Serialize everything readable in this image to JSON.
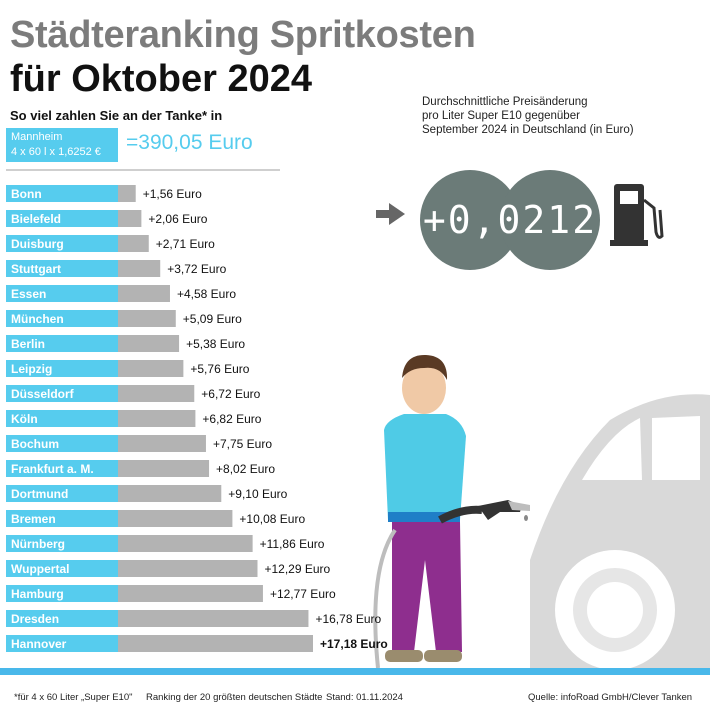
{
  "header": {
    "title_line1": "Städteranking Spritkosten",
    "title_line2": "für Oktober 2024",
    "subtitle": "So viel zahlen Sie an der Tanke* in"
  },
  "reference": {
    "city": "Mannheim",
    "formula": "4 x 60 l x 1,6252 €",
    "total": "=390,05 Euro"
  },
  "price_change": {
    "note_lines": [
      "Durchschnittliche Preisänderung",
      "pro Liter Super E10 gegenüber",
      "September 2024 in Deutschland (in Euro)"
    ],
    "value": "+0,0212"
  },
  "colors": {
    "accent": "#56ccee",
    "bar": "#b3b3b3",
    "title_gray": "#7c7c7c",
    "circle": "#6b7b78",
    "footer_line": "#49b8ea"
  },
  "icons": [
    "arrow-right-icon",
    "fuel-pump-icon"
  ],
  "chart_data": {
    "type": "bar",
    "orientation": "horizontal",
    "categories": [
      "Bonn",
      "Bielefeld",
      "Duisburg",
      "Stuttgart",
      "Essen",
      "München",
      "Berlin",
      "Leipzig",
      "Düsseldorf",
      "Köln",
      "Bochum",
      "Frankfurt a. M.",
      "Dortmund",
      "Bremen",
      "Nürnberg",
      "Wuppertal",
      "Hamburg",
      "Dresden",
      "Hannover"
    ],
    "values": [
      1.56,
      2.06,
      2.71,
      3.72,
      4.58,
      5.09,
      5.38,
      5.76,
      6.72,
      6.82,
      7.75,
      8.02,
      9.1,
      10.08,
      11.86,
      12.29,
      12.77,
      16.78,
      17.18
    ],
    "value_labels": [
      "+1,56 Euro",
      "+2,06 Euro",
      "+2,71 Euro",
      "+3,72 Euro",
      "+4,58 Euro",
      "+5,09 Euro",
      "+5,38 Euro",
      "+5,76 Euro",
      "+6,72 Euro",
      "+6,82 Euro",
      "+7,75 Euro",
      "+8,02 Euro",
      "+9,10 Euro",
      "+10,08 Euro",
      "+11,86 Euro",
      "+12,29 Euro",
      "+12,77 Euro",
      "+16,78 Euro",
      "+17,18 Euro"
    ],
    "highlight_index": 18,
    "title": "",
    "xlabel": "",
    "ylabel": ""
  },
  "footer": {
    "note": "*für 4 x 60 Liter „Super E10\"",
    "ranking": "Ranking der 20 größten deutschen Städte",
    "date": "Stand: 01.11.2024",
    "source": "Quelle: infoRoad GmbH/Clever Tanken"
  }
}
